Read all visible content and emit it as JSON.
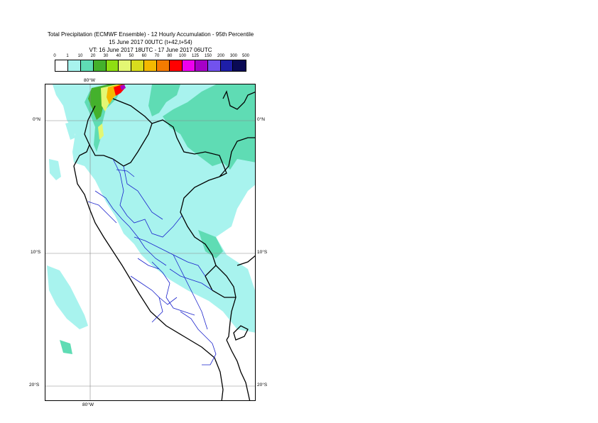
{
  "title": {
    "line1": "Total Precipitation (ECMWF Ensemble) - 12 Hourly Accumulation - 95th Percentile",
    "line2": "15 June 2017 00UTC (t+42,t+54)",
    "line3": "VT: 16 June 2017 18UTC - 17 June 2017 06UTC"
  },
  "legend": {
    "ticks": [
      "0",
      "1",
      "10",
      "20",
      "30",
      "40",
      "50",
      "60",
      "70",
      "80",
      "100",
      "125",
      "150",
      "200",
      "300",
      "500"
    ],
    "colors": [
      "#ffffff",
      "#a8f3ee",
      "#5fdcb4",
      "#44b12c",
      "#8fde12",
      "#e3f773",
      "#d8dc1e",
      "#f4b800",
      "#f57b00",
      "#ff0000",
      "#ee00ee",
      "#a600c7",
      "#7252ee",
      "#1e1ea8",
      "#0a0a55"
    ]
  },
  "map": {
    "lon_labels": {
      "top": "80°W",
      "bottom": "80°W"
    },
    "lat_labels": [
      {
        "left": "0°N",
        "right": "0°N"
      },
      {
        "left": "10°S",
        "right": "10°S"
      },
      {
        "left": "20°S",
        "right": "20°S"
      }
    ],
    "colors": {
      "light": "#a8f3ee",
      "medium": "#5fdcb4",
      "green": "#44b12c",
      "yellow": "#e3f773",
      "orange": "#f4b800",
      "red": "#ff0000",
      "purple": "#a600c7",
      "boundary": "#000000",
      "region": "#1a22cc",
      "grid": "#888888"
    }
  }
}
